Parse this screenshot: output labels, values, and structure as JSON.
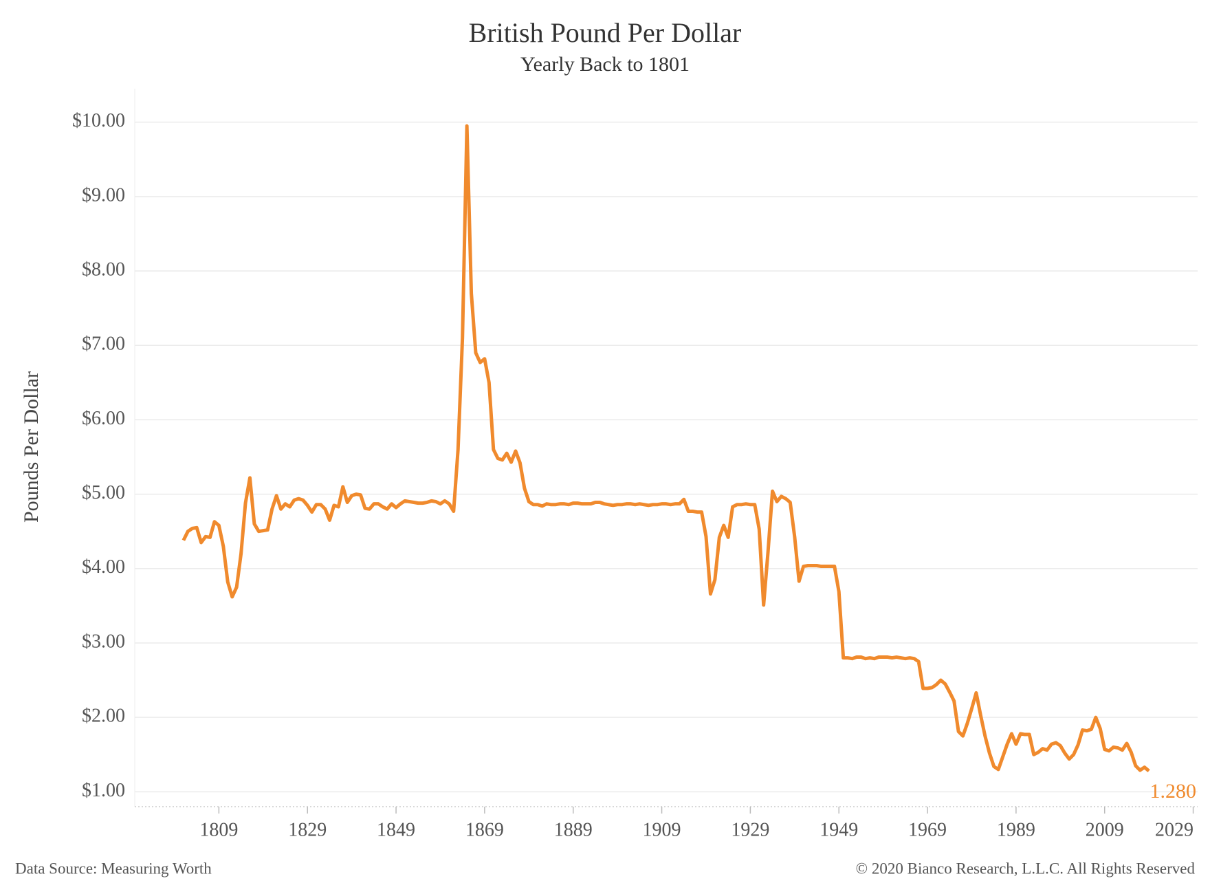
{
  "chart_data": {
    "type": "line",
    "title": "British Pound Per Dollar",
    "subtitle": "Yearly Back to 1801",
    "y_label": "Pounds Per Dollar",
    "source": "Data Source: Measuring Worth",
    "copyright": "© 2020 Bianco Research, L.L.C. All Rights Reserved",
    "color": "#f08a2d",
    "x": [
      1801,
      1802,
      1803,
      1804,
      1805,
      1806,
      1807,
      1808,
      1809,
      1810,
      1811,
      1812,
      1813,
      1814,
      1815,
      1816,
      1817,
      1818,
      1819,
      1820,
      1821,
      1822,
      1823,
      1824,
      1825,
      1826,
      1827,
      1828,
      1829,
      1830,
      1831,
      1832,
      1833,
      1834,
      1835,
      1836,
      1837,
      1838,
      1839,
      1840,
      1841,
      1842,
      1843,
      1844,
      1845,
      1846,
      1847,
      1848,
      1849,
      1850,
      1851,
      1852,
      1853,
      1854,
      1855,
      1856,
      1857,
      1858,
      1859,
      1860,
      1861,
      1862,
      1863,
      1864,
      1865,
      1866,
      1867,
      1868,
      1869,
      1870,
      1871,
      1872,
      1873,
      1874,
      1875,
      1876,
      1877,
      1878,
      1879,
      1880,
      1881,
      1882,
      1883,
      1884,
      1885,
      1886,
      1887,
      1888,
      1889,
      1890,
      1891,
      1892,
      1893,
      1894,
      1895,
      1896,
      1897,
      1898,
      1899,
      1900,
      1901,
      1902,
      1903,
      1904,
      1905,
      1906,
      1907,
      1908,
      1909,
      1910,
      1911,
      1912,
      1913,
      1914,
      1915,
      1916,
      1917,
      1918,
      1919,
      1920,
      1921,
      1922,
      1923,
      1924,
      1925,
      1926,
      1927,
      1928,
      1929,
      1930,
      1931,
      1932,
      1933,
      1934,
      1935,
      1936,
      1937,
      1938,
      1939,
      1940,
      1941,
      1942,
      1943,
      1944,
      1945,
      1946,
      1947,
      1948,
      1949,
      1950,
      1951,
      1952,
      1953,
      1954,
      1955,
      1956,
      1957,
      1958,
      1959,
      1960,
      1961,
      1962,
      1963,
      1964,
      1965,
      1966,
      1967,
      1968,
      1969,
      1970,
      1971,
      1972,
      1973,
      1974,
      1975,
      1976,
      1977,
      1978,
      1979,
      1980,
      1981,
      1982,
      1983,
      1984,
      1985,
      1986,
      1987,
      1988,
      1989,
      1990,
      1991,
      1992,
      1993,
      1994,
      1995,
      1996,
      1997,
      1998,
      1999,
      2000,
      2001,
      2002,
      2003,
      2004,
      2005,
      2006,
      2007,
      2008,
      2009,
      2010,
      2011,
      2012,
      2013,
      2014,
      2015,
      2016,
      2017,
      2018,
      2019
    ],
    "values": [
      4.38,
      4.5,
      4.54,
      4.55,
      4.35,
      4.43,
      4.42,
      4.63,
      4.58,
      4.3,
      3.82,
      3.62,
      3.75,
      4.2,
      4.88,
      5.22,
      4.6,
      4.5,
      4.51,
      4.52,
      4.8,
      4.98,
      4.8,
      4.87,
      4.83,
      4.92,
      4.94,
      4.92,
      4.85,
      4.76,
      4.86,
      4.86,
      4.8,
      4.65,
      4.85,
      4.83,
      5.1,
      4.89,
      4.98,
      5.0,
      4.99,
      4.81,
      4.8,
      4.87,
      4.87,
      4.83,
      4.8,
      4.87,
      4.82,
      4.87,
      4.91,
      4.9,
      4.89,
      4.88,
      4.88,
      4.89,
      4.91,
      4.9,
      4.87,
      4.91,
      4.87,
      4.77,
      5.6,
      7.1,
      9.95,
      7.7,
      6.9,
      6.77,
      6.82,
      6.5,
      5.6,
      5.48,
      5.46,
      5.55,
      5.43,
      5.58,
      5.42,
      5.08,
      4.9,
      4.86,
      4.86,
      4.84,
      4.87,
      4.86,
      4.86,
      4.87,
      4.87,
      4.86,
      4.88,
      4.88,
      4.87,
      4.87,
      4.87,
      4.89,
      4.89,
      4.87,
      4.86,
      4.85,
      4.86,
      4.86,
      4.87,
      4.87,
      4.86,
      4.87,
      4.86,
      4.85,
      4.86,
      4.86,
      4.87,
      4.87,
      4.86,
      4.87,
      4.87,
      4.93,
      4.77,
      4.77,
      4.76,
      4.76,
      4.43,
      3.66,
      3.85,
      4.42,
      4.58,
      4.42,
      4.83,
      4.86,
      4.86,
      4.87,
      4.86,
      4.86,
      4.53,
      3.51,
      4.23,
      5.04,
      4.9,
      4.97,
      4.94,
      4.89,
      4.43,
      3.83,
      4.03,
      4.04,
      4.04,
      4.04,
      4.03,
      4.03,
      4.03,
      4.03,
      3.69,
      2.8,
      2.8,
      2.79,
      2.81,
      2.81,
      2.79,
      2.8,
      2.79,
      2.81,
      2.81,
      2.81,
      2.8,
      2.81,
      2.8,
      2.79,
      2.8,
      2.79,
      2.75,
      2.39,
      2.39,
      2.4,
      2.44,
      2.5,
      2.45,
      2.34,
      2.22,
      1.81,
      1.75,
      1.92,
      2.12,
      2.33,
      2.03,
      1.75,
      1.52,
      1.34,
      1.3,
      1.47,
      1.64,
      1.78,
      1.64,
      1.78,
      1.77,
      1.77,
      1.5,
      1.53,
      1.58,
      1.56,
      1.64,
      1.66,
      1.62,
      1.52,
      1.44,
      1.5,
      1.63,
      1.83,
      1.82,
      1.84,
      2.0,
      1.85,
      1.57,
      1.55,
      1.6,
      1.59,
      1.56,
      1.65,
      1.53,
      1.35,
      1.29,
      1.33,
      1.28
    ],
    "value_labels": [
      null,
      null,
      null,
      null,
      null,
      null,
      null,
      null,
      null,
      null,
      null,
      null,
      null,
      null,
      null,
      null,
      null,
      null,
      null,
      null,
      null,
      null,
      null,
      null,
      null,
      null,
      null,
      null,
      null,
      null,
      null,
      null,
      null,
      null,
      null,
      null,
      null,
      null,
      null,
      null,
      null,
      null,
      null,
      null,
      null,
      null,
      null,
      null,
      null,
      null,
      null,
      null,
      null,
      null,
      null,
      null,
      null,
      null,
      null,
      null,
      null,
      null,
      null,
      null,
      null,
      null,
      null,
      null,
      null,
      null,
      null,
      null,
      null,
      null,
      null,
      null,
      null,
      null,
      null,
      null,
      null,
      null,
      null,
      null,
      null,
      null,
      null,
      null,
      null,
      null,
      null,
      null,
      null,
      null,
      null,
      null,
      null,
      null,
      null,
      null,
      null,
      null,
      null,
      null,
      null,
      null,
      null,
      null,
      null,
      null,
      null,
      null,
      null,
      null,
      null,
      null,
      null,
      null,
      null,
      null,
      null,
      null,
      null,
      null,
      null,
      null,
      null,
      null,
      null,
      null,
      null,
      null,
      null,
      null,
      null,
      null,
      null,
      null,
      null,
      null,
      null,
      null,
      null,
      null,
      null,
      null,
      null,
      null,
      null,
      null,
      null,
      null,
      null,
      null,
      null,
      null,
      null,
      null,
      null,
      null,
      null,
      null,
      null,
      null,
      null,
      null,
      null,
      null,
      null,
      null,
      null,
      null,
      null,
      null,
      null,
      null,
      null,
      null,
      null,
      null,
      null,
      null,
      null,
      null,
      null,
      null,
      null,
      null,
      null,
      null,
      null,
      null,
      null,
      null,
      null,
      null,
      null,
      null,
      null,
      null,
      null,
      null,
      null,
      null,
      null,
      null,
      null,
      null,
      null,
      null,
      null,
      null,
      null,
      null,
      null,
      null,
      null,
      null,
      "1.280"
    ],
    "xlim": [
      1790,
      2030
    ],
    "xticks": [
      1809,
      1829,
      1849,
      1869,
      1889,
      1909,
      1929,
      1949,
      1969,
      1989,
      2009,
      2029
    ],
    "ylim": [
      0.8,
      10.45
    ],
    "yticks": [
      {
        "value": 1,
        "label": "$1.00"
      },
      {
        "value": 2,
        "label": "$2.00"
      },
      {
        "value": 3,
        "label": "$3.00"
      },
      {
        "value": 4,
        "label": "$4.00"
      },
      {
        "value": 5,
        "label": "$5.00"
      },
      {
        "value": 6,
        "label": "$6.00"
      },
      {
        "value": 7,
        "label": "$7.00"
      },
      {
        "value": 8,
        "label": "$8.00"
      },
      {
        "value": 9,
        "label": "$9.00"
      },
      {
        "value": 10,
        "label": "$10.00"
      }
    ],
    "grid": true
  }
}
